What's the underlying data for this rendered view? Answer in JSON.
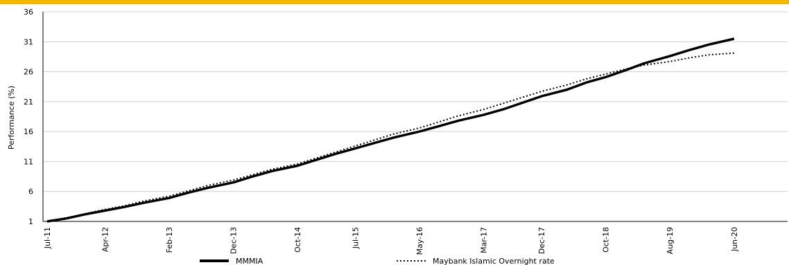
{
  "chart_data": {
    "type": "line",
    "ylabel": "Performance (%)",
    "ylim": [
      1,
      36
    ],
    "yticks": [
      "1",
      "6",
      "11",
      "16",
      "21",
      "26",
      "31",
      "36"
    ],
    "xtick_labels": [
      "Jul-11",
      "Apr-12",
      "Feb-13",
      "Dec-13",
      "Oct-14",
      "Jul-15",
      "May-16",
      "Mar-17",
      "Dec-17",
      "Oct-18",
      "Aug-19",
      "Jun-20"
    ],
    "x_months": [
      "2011-07",
      "2011-10",
      "2012-01",
      "2012-04",
      "2012-07",
      "2012-10",
      "2013-02",
      "2013-05",
      "2013-08",
      "2013-12",
      "2014-03",
      "2014-06",
      "2014-10",
      "2015-01",
      "2015-04",
      "2015-07",
      "2015-10",
      "2016-01",
      "2016-05",
      "2016-08",
      "2016-11",
      "2017-03",
      "2017-06",
      "2017-09",
      "2017-12",
      "2018-04",
      "2018-07",
      "2018-10",
      "2019-01",
      "2019-04",
      "2019-08",
      "2019-11",
      "2020-02",
      "2020-06"
    ],
    "series": [
      {
        "name": "MMMIA",
        "style": "solid",
        "values": [
          1.0,
          1.5,
          2.2,
          2.8,
          3.4,
          4.1,
          4.9,
          5.8,
          6.6,
          7.5,
          8.5,
          9.4,
          10.3,
          11.3,
          12.3,
          13.2,
          14.1,
          15.0,
          16.0,
          16.9,
          17.8,
          18.8,
          19.7,
          20.8,
          21.9,
          23.0,
          24.2,
          25.1,
          26.2,
          27.4,
          28.6,
          29.6,
          30.5,
          31.5
        ]
      },
      {
        "name": "Maybank Islamic Overnight rate",
        "style": "dotted",
        "values": [
          1.0,
          1.6,
          2.3,
          3.0,
          3.6,
          4.4,
          5.2,
          6.1,
          7.0,
          7.9,
          8.8,
          9.7,
          10.6,
          11.6,
          12.6,
          13.6,
          14.6,
          15.6,
          16.6,
          17.6,
          18.6,
          19.7,
          20.7,
          21.7,
          22.7,
          23.8,
          24.8,
          25.6,
          26.4,
          27.1,
          27.7,
          28.3,
          28.8,
          29.1
        ]
      }
    ],
    "grid": "horizontal",
    "legend_position": "bottom"
  },
  "colors": {
    "top_bar": "#f5b800",
    "line": "#000000",
    "grid": "#cfcfcf"
  }
}
